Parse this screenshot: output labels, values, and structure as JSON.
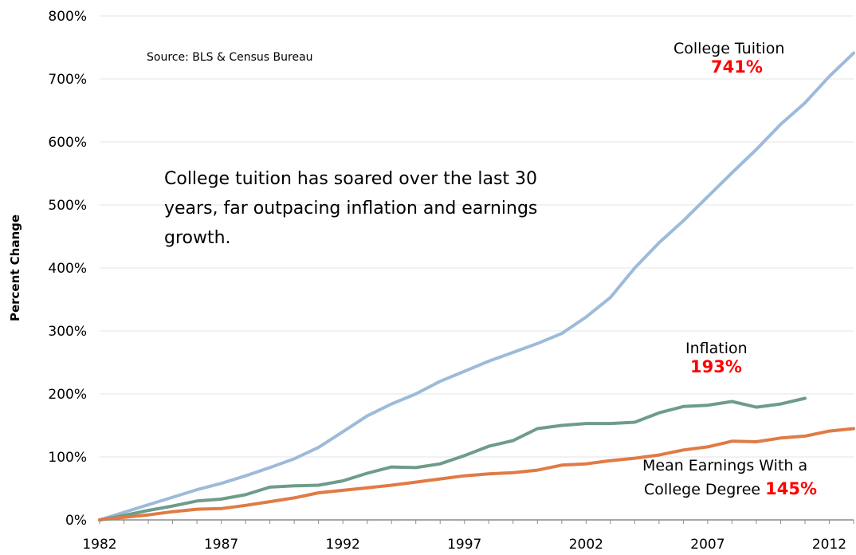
{
  "chart_data": {
    "type": "line",
    "ylabel": "Percent Change",
    "xlabel": "",
    "x_ticks": [
      "1982",
      "1987",
      "1992",
      "1997",
      "2002",
      "2007",
      "2012"
    ],
    "y_ticks": [
      "0%",
      "100%",
      "200%",
      "300%",
      "400%",
      "500%",
      "600%",
      "700%",
      "800%"
    ],
    "ylim": [
      0,
      800
    ],
    "xlim": [
      1982,
      2013
    ],
    "grid": "horizontal",
    "source": "Source: BLS & Census Bureau",
    "annotation": "College tuition has soared over the last 30 years, far outpacing inflation and earnings growth.",
    "x": [
      1982,
      1983,
      1984,
      1985,
      1986,
      1987,
      1988,
      1989,
      1990,
      1991,
      1992,
      1993,
      1994,
      1995,
      1996,
      1997,
      1998,
      1999,
      2000,
      2001,
      2002,
      2003,
      2004,
      2005,
      2006,
      2007,
      2008,
      2009,
      2010,
      2011,
      2012,
      2013
    ],
    "series": [
      {
        "name": "College Tuition",
        "end_label": "741%",
        "color": "#9dbbd9",
        "values": [
          0,
          12,
          24,
          36,
          48,
          58,
          70,
          83,
          97,
          115,
          140,
          165,
          184,
          200,
          220,
          236,
          252,
          266,
          280,
          296,
          322,
          353,
          400,
          440,
          475,
          513,
          551,
          588,
          628,
          662,
          704,
          741
        ]
      },
      {
        "name": "Inflation",
        "end_label": "193%",
        "color": "#6e9c8a",
        "values": [
          0,
          7,
          15,
          22,
          30,
          33,
          40,
          52,
          54,
          55,
          62,
          74,
          84,
          83,
          89,
          102,
          117,
          126,
          145,
          150,
          153,
          153,
          155,
          170,
          180,
          182,
          188,
          179,
          184,
          193,
          null,
          null
        ]
      },
      {
        "name": "Mean Earnings With a College Degree",
        "label_line1": "Mean Earnings With a",
        "label_line2": "College Degree",
        "end_label": "145%",
        "color": "#e07b45",
        "values": [
          0,
          4,
          8,
          13,
          17,
          18,
          23,
          29,
          35,
          43,
          47,
          51,
          55,
          60,
          65,
          70,
          73,
          75,
          79,
          87,
          89,
          94,
          98,
          103,
          111,
          116,
          125,
          124,
          130,
          133,
          141,
          145
        ]
      }
    ]
  }
}
